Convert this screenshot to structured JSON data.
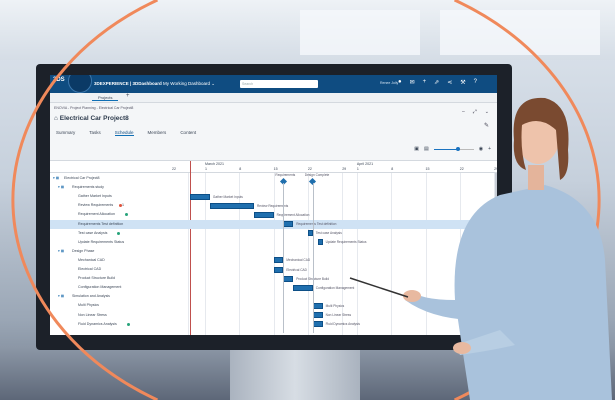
{
  "app": {
    "brand": "3DS",
    "title": "3DEXPERIENCE | 3DDashboard",
    "dashboard": "My Working Dashboard",
    "search_placeholder": "Search",
    "user": "Renee Jolly"
  },
  "tabs": {
    "projects": "Projects",
    "add": "+"
  },
  "breadcrumb": "ENOVIA - Project Planning - Electrical Car Project8",
  "page_title": "Electrical Car Project8",
  "nav_tabs": [
    {
      "label": "Summary"
    },
    {
      "label": "Tasks"
    },
    {
      "label": "Schedule",
      "active": true
    },
    {
      "label": "Members"
    },
    {
      "label": "Content"
    }
  ],
  "timeline": {
    "prev_label": "22",
    "months": [
      {
        "label": "March 2021",
        "days": [
          "1",
          "8",
          "15",
          "22",
          "29"
        ]
      },
      {
        "label": "April 2021",
        "days": [
          "1",
          "8",
          "15",
          "22",
          "29"
        ]
      }
    ]
  },
  "zoom_level_fraction": 0.6,
  "today_marker": "2021-02-26",
  "colors": {
    "header": "#0f4c81",
    "bar": "#1f6fae",
    "today": "#c0504d",
    "ring": "#f0895b"
  },
  "milestones": [
    {
      "label": "Requirements",
      "date": "2021-03-17"
    },
    {
      "label": "Design Complete",
      "date": "2021-03-23"
    }
  ],
  "tasks": [
    {
      "label": "Electrical Car Project8",
      "level": 0,
      "group": true
    },
    {
      "label": "Requirements study",
      "level": 1,
      "group": true
    },
    {
      "label": "Gather Market Inputs",
      "level": 2,
      "start": "2021-02-26",
      "end": "2021-03-02"
    },
    {
      "label": "Review Requirements",
      "level": 2,
      "start": "2021-03-02",
      "end": "2021-03-11",
      "status": "red",
      "badge": "1"
    },
    {
      "label": "Requirement Allocation",
      "level": 2,
      "start": "2021-03-11",
      "end": "2021-03-15",
      "status": "green"
    },
    {
      "label": "Requirements Test definition",
      "level": 2,
      "start": "2021-03-17",
      "end": "2021-03-19",
      "selected": true
    },
    {
      "label": "Test case Analysis",
      "level": 2,
      "start": "2021-03-22",
      "end": "2021-03-23",
      "status": "green"
    },
    {
      "label": "Update Requirements Status",
      "level": 2,
      "start": "2021-03-24",
      "end": "2021-03-25"
    },
    {
      "label": "Design Phase",
      "level": 1,
      "group": true
    },
    {
      "label": "Mechanical CAD",
      "level": 2,
      "start": "2021-03-15",
      "end": "2021-03-17"
    },
    {
      "label": "Electrical CAD",
      "level": 2,
      "start": "2021-03-15",
      "end": "2021-03-17"
    },
    {
      "label": "Product Structure Build",
      "level": 2,
      "start": "2021-03-17",
      "end": "2021-03-19"
    },
    {
      "label": "Configuration Management",
      "level": 2,
      "start": "2021-03-19",
      "end": "2021-03-23"
    },
    {
      "label": "Simulation and Analysis",
      "level": 1,
      "group": true
    },
    {
      "label": "Multi Physics",
      "level": 2,
      "start": "2021-03-23",
      "end": "2021-03-25"
    },
    {
      "label": "Non Linear Stress",
      "level": 2,
      "start": "2021-03-23",
      "end": "2021-03-25"
    },
    {
      "label": "Fluid Dynamics Analysis",
      "level": 2,
      "start": "2021-03-23",
      "end": "2021-03-25",
      "status": "green"
    }
  ]
}
